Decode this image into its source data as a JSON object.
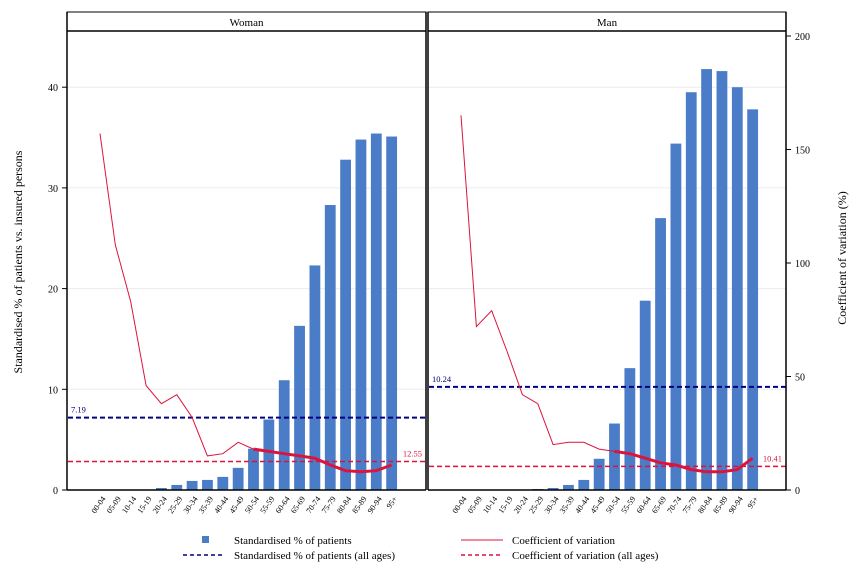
{
  "chart_data": {
    "type": "bar",
    "ylabel": "Standardised % of patients vs. insured persons",
    "y2label": "Coefficient of variation (%)",
    "ylim": [
      0,
      45.5
    ],
    "y2lim": [
      0,
      200
    ],
    "yticks": [
      0,
      10,
      20,
      30,
      40
    ],
    "y2ticks": [
      0,
      50,
      100,
      150,
      200
    ],
    "grid": true,
    "legend_position": "bottom",
    "categories": [
      "00-04",
      "05-09",
      "10-14",
      "15-19",
      "20-24",
      "25-29",
      "30-34",
      "35-39",
      "40-44",
      "45-49",
      "50-54",
      "55-59",
      "60-64",
      "65-69",
      "70-74",
      "75-79",
      "80-84",
      "85-89",
      "90-94",
      "95+"
    ],
    "panels": [
      {
        "title": "Woman",
        "bars": [
          0,
          0,
          0,
          0,
          0.2,
          0.5,
          0.9,
          1.0,
          1.3,
          2.2,
          4.1,
          7.0,
          10.9,
          16.3,
          22.3,
          28.3,
          32.8,
          34.8,
          35.4,
          35.1
        ],
        "cv": [
          157,
          108,
          83,
          46,
          38,
          42,
          32,
          15,
          16,
          21,
          18,
          17,
          16,
          15,
          14,
          11,
          8.5,
          8,
          8.5,
          11
        ],
        "cv_highlight_from": 10,
        "mean_pct": 7.19,
        "mean_pct_label": "7.19",
        "mean_cv": 12.55,
        "mean_cv_label": "12.55"
      },
      {
        "title": "Man",
        "bars": [
          0,
          0,
          0,
          0,
          0,
          0.1,
          0.2,
          0.5,
          1.0,
          3.1,
          6.6,
          12.1,
          18.8,
          27.0,
          34.4,
          39.5,
          41.8,
          41.6,
          40.0,
          37.8
        ],
        "cv": [
          165,
          72,
          79,
          61,
          42,
          38,
          20,
          21,
          21,
          18,
          17,
          16,
          14,
          12,
          11,
          9,
          8,
          8,
          9,
          14
        ],
        "cv_highlight_from": 10,
        "mean_pct": 10.24,
        "mean_pct_label": "10.24",
        "mean_cv": 10.41,
        "mean_cv_label": "10.41"
      }
    ],
    "legend": [
      {
        "label": "Standardised % of patients",
        "kind": "square",
        "color": "#4a7cc7"
      },
      {
        "label": "Coefficient of variation",
        "kind": "line",
        "color": "#dc143c"
      },
      {
        "label": "Standardised % of patients (all ages)",
        "kind": "dash",
        "color": "#000080"
      },
      {
        "label": "Coefficient of variation (all ages)",
        "kind": "dash",
        "color": "#dc143c"
      }
    ],
    "colors": {
      "bar": "#4a7cc7",
      "cv_line": "#dc143c",
      "cv_highlight": "#dc143c",
      "mean_pct_line": "#000080",
      "mean_cv_line": "#dc143c",
      "header_bg": "#ffffff",
      "grid": "#ececec"
    }
  }
}
